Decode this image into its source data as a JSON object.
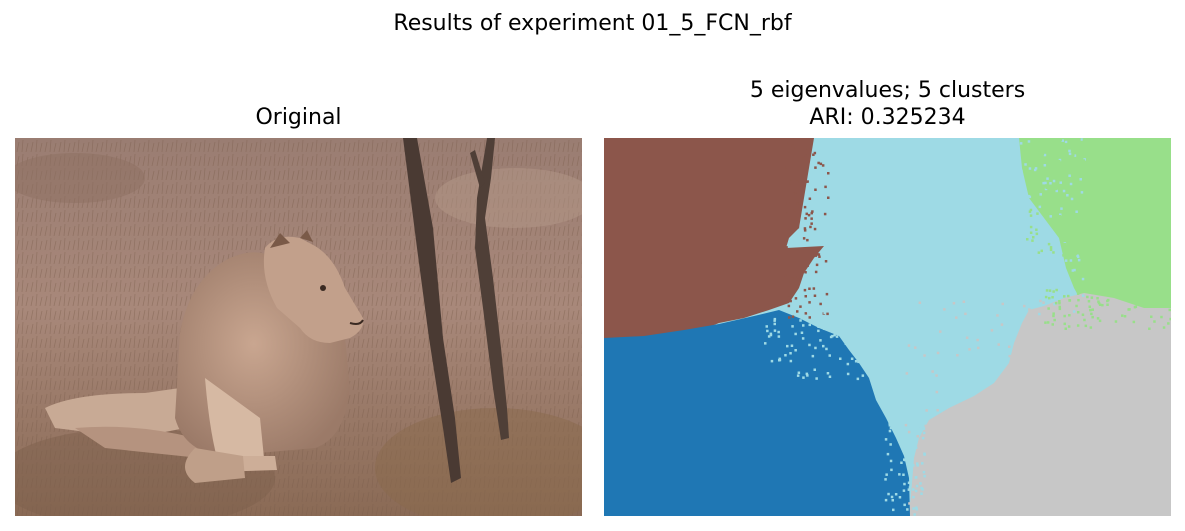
{
  "figure": {
    "suptitle": "Results of experiment 01_5_FCN_rbf"
  },
  "left_panel": {
    "title": "Original"
  },
  "right_panel": {
    "title_line1": "5 eigenvalues; 5 clusters",
    "title_line2": "ARI: 0.325234",
    "cluster_colors": [
      "#8c564b",
      "#9edae5",
      "#98df8a",
      "#1f77b4",
      "#c7c7c7"
    ]
  }
}
